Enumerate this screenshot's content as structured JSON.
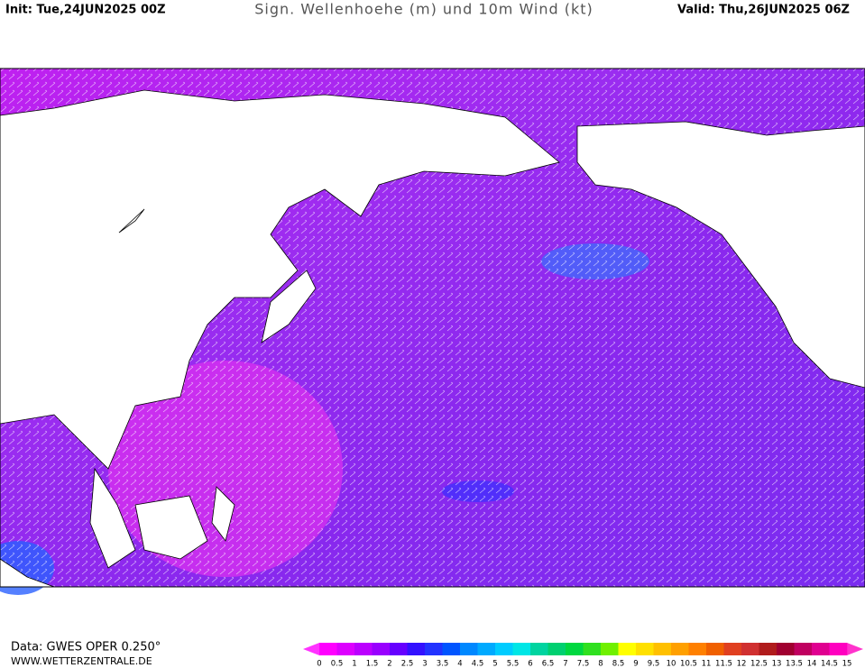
{
  "header": {
    "init": "Init: Tue,24JUN2025 00Z",
    "title": "Sign. Wellenhoehe (m) und 10m Wind (kt)",
    "valid": "Valid: Thu,26JUN2025 06Z"
  },
  "footer": {
    "data_source": "Data: GWES OPER 0.250°",
    "website": "WWW.WETTERZENTRALE.DE"
  },
  "colorbar": {
    "ticks": [
      0,
      0.5,
      1,
      1.5,
      2,
      2.5,
      3,
      3.5,
      4,
      4.5,
      5,
      5.5,
      6,
      6.5,
      7,
      7.5,
      8,
      8.5,
      9,
      9.5,
      10,
      10.5,
      11,
      11.5,
      12,
      12.5,
      13,
      13.5,
      14,
      14.5,
      15
    ],
    "colors": [
      "#ff00ff",
      "#dd00ff",
      "#bb00ff",
      "#9900ff",
      "#6600ff",
      "#3311ff",
      "#2233ff",
      "#0055ff",
      "#0088ff",
      "#00aaff",
      "#00ccff",
      "#00e6e6",
      "#00d4a0",
      "#00d070",
      "#00d840",
      "#30e020",
      "#70f000",
      "#ffff00",
      "#ffe000",
      "#ffc000",
      "#ffa000",
      "#ff8000",
      "#f06000",
      "#e04020",
      "#d03030",
      "#b01c1c",
      "#a00030",
      "#c00060",
      "#e00090",
      "#ff00c0"
    ],
    "low_color": "#ff33ff",
    "high_color": "#ff33cc"
  }
}
